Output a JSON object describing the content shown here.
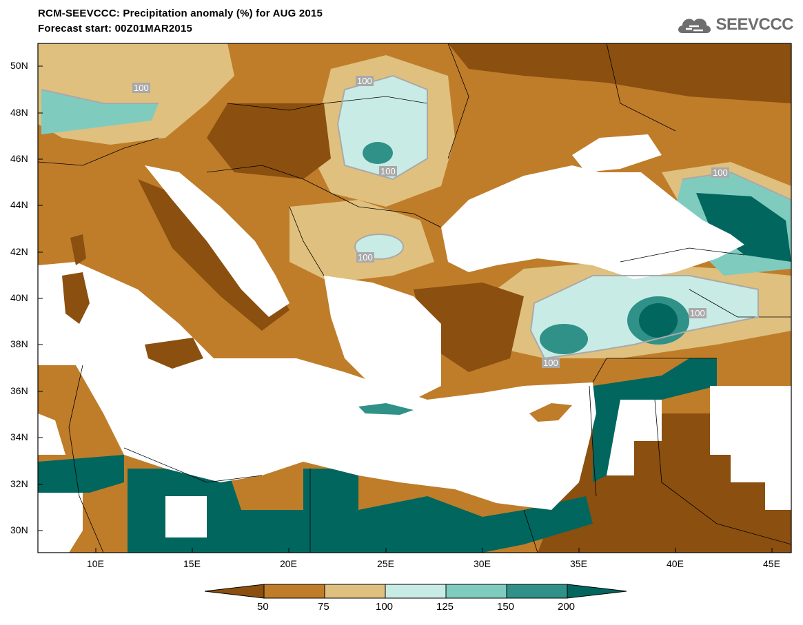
{
  "header": {
    "title_line1": "RCM-SEEVCCC: Precipitation anomaly (%) for AUG 2015",
    "title_line2": "Forecast start: 00Z01MAR2015"
  },
  "logo": {
    "text": "SEEVCCC",
    "icon": "cloud-icon"
  },
  "map": {
    "lat_labels": [
      "50N",
      "48N",
      "46N",
      "44N",
      "42N",
      "40N",
      "38N",
      "36N",
      "34N",
      "32N",
      "30N"
    ],
    "lon_labels": [
      "10E",
      "15E",
      "20E",
      "25E",
      "30E",
      "35E",
      "40E",
      "45E"
    ],
    "contour_labels": [
      "100",
      "100",
      "100",
      "100",
      "100",
      "100",
      "100"
    ]
  },
  "colorbar": {
    "ticks": [
      "50",
      "75",
      "100",
      "125",
      "150",
      "200"
    ],
    "colors": [
      "#8b4f0f",
      "#bf7d2a",
      "#dfc07e",
      "#c9ebe6",
      "#7fccbf",
      "#2f9187",
      "#01665e"
    ]
  }
}
